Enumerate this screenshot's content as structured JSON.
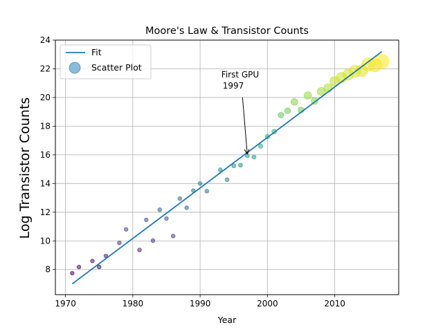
{
  "chart_data": {
    "type": "scatter",
    "title": "Moore's Law & Transistor Counts",
    "xlabel": "Year",
    "ylabel": "Log Transistor Counts",
    "xlim": [
      1968.5,
      2019.5
    ],
    "ylim": [
      6.25,
      24
    ],
    "xticks": [
      1970,
      1980,
      1990,
      2000,
      2010
    ],
    "yticks": [
      8,
      10,
      12,
      14,
      16,
      18,
      20,
      22,
      24
    ],
    "grid": true,
    "legend_position": "top-left",
    "legend": {
      "fit_label": "Fit",
      "scatter_label": "Scatter Plot"
    },
    "fit": {
      "name": "Fit",
      "color": "#1f77b4",
      "x": [
        1971,
        2017
      ],
      "y": [
        7.0,
        23.2
      ]
    },
    "scatter": {
      "name": "Scatter Plot",
      "x": [
        1971,
        1972,
        1974,
        1975,
        1976,
        1978,
        1979,
        1981,
        1982,
        1983,
        1984,
        1985,
        1986,
        1987,
        1988,
        1989,
        1990,
        1991,
        1993,
        1994,
        1995,
        1996,
        1997,
        1998,
        1999,
        2000,
        2001,
        2002,
        2003,
        2004,
        2005,
        2006,
        2007,
        2008,
        2009,
        2010,
        2011,
        2012,
        2013,
        2014,
        2015,
        2016,
        2017
      ],
      "y": [
        7.75,
        8.18,
        8.6,
        8.18,
        8.95,
        9.86,
        10.8,
        9.37,
        11.47,
        10.02,
        12.17,
        11.56,
        10.34,
        12.95,
        12.31,
        13.51,
        14.0,
        13.47,
        14.96,
        14.27,
        15.23,
        15.28,
        15.94,
        15.85,
        16.6,
        17.27,
        17.62,
        18.77,
        19.07,
        19.69,
        19.12,
        20.14,
        19.76,
        20.42,
        20.66,
        21.12,
        21.39,
        21.59,
        21.83,
        21.86,
        22.3,
        22.25,
        22.52
      ]
    },
    "annotation": {
      "text_line1": "First GPU",
      "text_line2": "1997",
      "x": 1997,
      "y": 15.94,
      "text_x": 1996,
      "text_y": 20.6
    }
  }
}
